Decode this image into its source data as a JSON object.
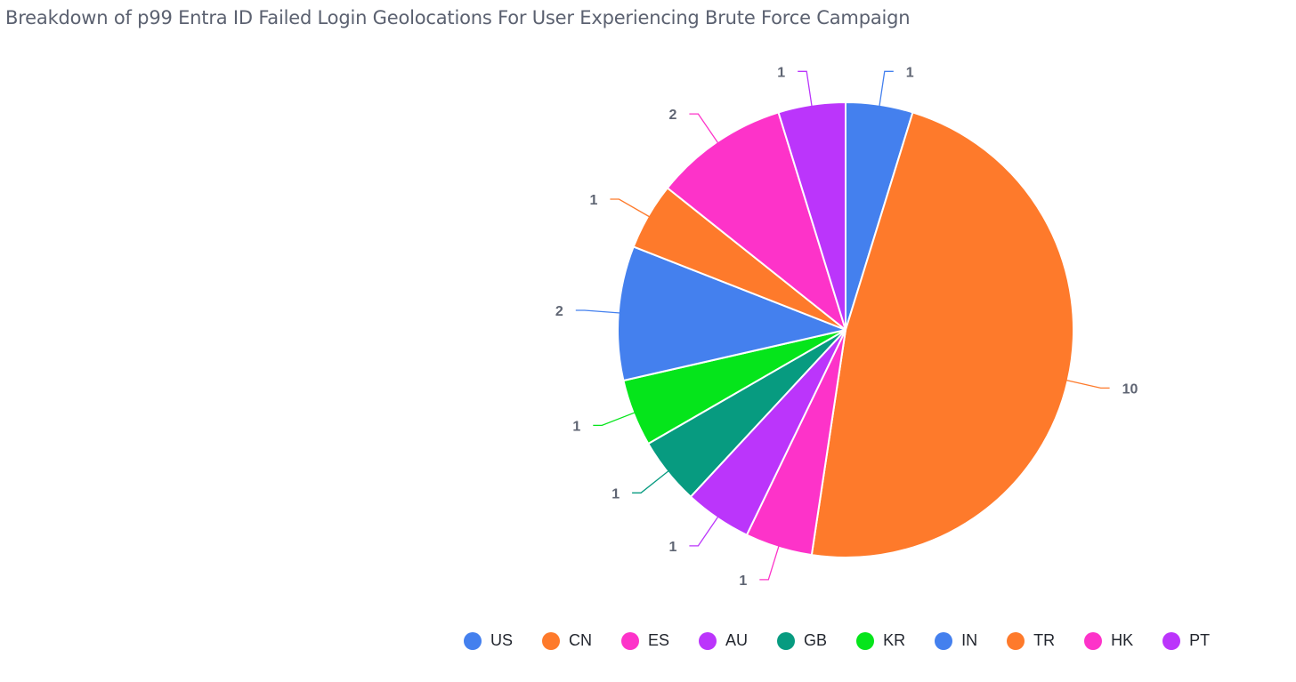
{
  "chart_data": {
    "type": "pie",
    "title": "Breakdown of p99 Entra ID Failed Login Geolocations For User Experiencing Brute Force Campaign",
    "legend_position": "bottom",
    "slices": [
      {
        "label": "US",
        "value": 1,
        "color": "#4480ee"
      },
      {
        "label": "CN",
        "value": 10,
        "color": "#fe7a2b"
      },
      {
        "label": "ES",
        "value": 1,
        "color": "#fd33c9"
      },
      {
        "label": "AU",
        "value": 1,
        "color": "#bb35fb"
      },
      {
        "label": "GB",
        "value": 1,
        "color": "#079b80"
      },
      {
        "label": "KR",
        "value": 1,
        "color": "#05e51b"
      },
      {
        "label": "IN",
        "value": 2,
        "color": "#4480ee"
      },
      {
        "label": "TR",
        "value": 1,
        "color": "#fe7a2b"
      },
      {
        "label": "HK",
        "value": 2,
        "color": "#fd33c9"
      },
      {
        "label": "PT",
        "value": 1,
        "color": "#bb35fb"
      }
    ]
  }
}
